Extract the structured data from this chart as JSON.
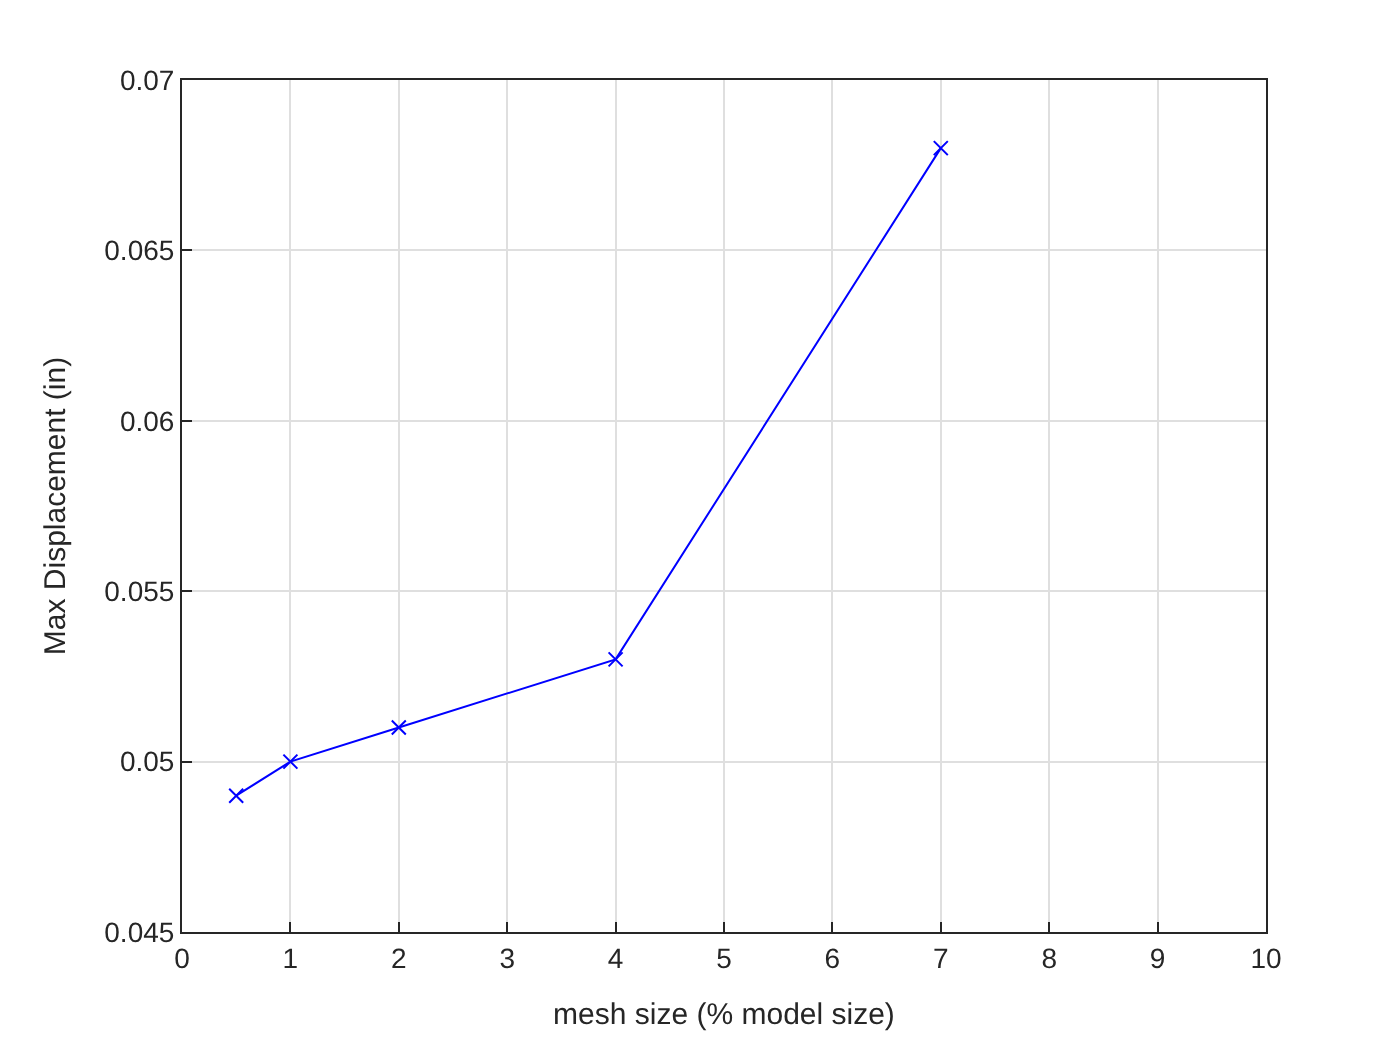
{
  "chart_data": {
    "type": "line",
    "xlabel": "mesh size (% model size)",
    "ylabel": "Max Displacement (in)",
    "x": [
      0.5,
      1,
      2,
      4,
      7
    ],
    "series": [
      {
        "color": "#0000ff",
        "values": [
          0.049,
          0.05,
          0.051,
          0.053,
          0.068
        ]
      }
    ],
    "xlim": [
      0,
      10
    ],
    "xticks": [
      0,
      1,
      2,
      3,
      4,
      5,
      6,
      7,
      8,
      9,
      10
    ],
    "ylim": [
      0.045,
      0.07
    ],
    "yticks": [
      0.045,
      0.05,
      0.055,
      0.06,
      0.065,
      0.07
    ],
    "grid": true,
    "marker": "cross",
    "line_style": "solid",
    "legend": false
  }
}
